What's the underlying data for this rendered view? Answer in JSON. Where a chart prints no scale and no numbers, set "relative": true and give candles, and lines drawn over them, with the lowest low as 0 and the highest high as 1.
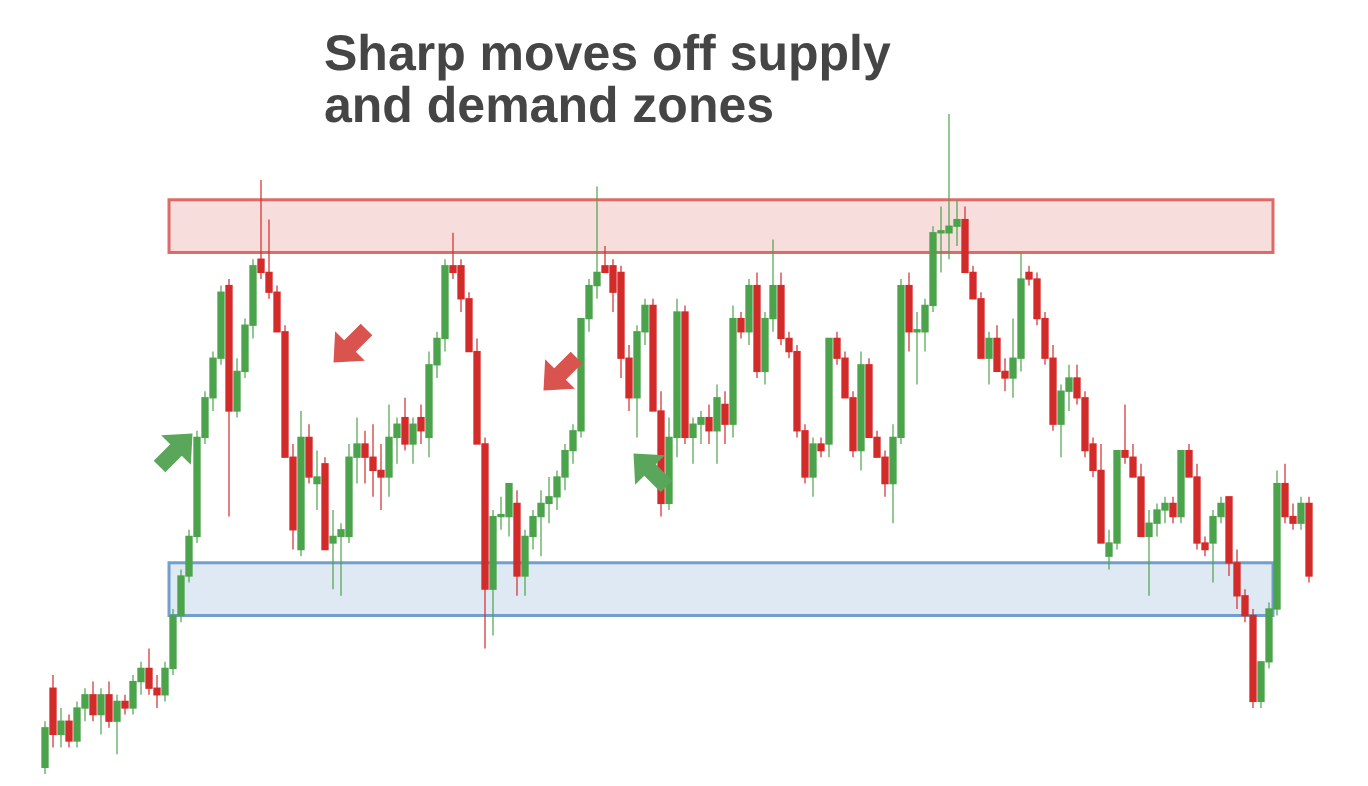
{
  "chart_data": {
    "type": "candlestick",
    "title": "Sharp moves off supply and demand zones",
    "relative": true,
    "colors": [
      "#4ba34b",
      "#d32a2a",
      "#4ba34b",
      "#d32a2a",
      "#4ba34b",
      "#4ba34b",
      "#d32a2a",
      "#4ba34b",
      "#d32a2a",
      "#4ba34b",
      "#d32a2a",
      "#4ba34b",
      "#4ba34b",
      "#d32a2a",
      "#d32a2a",
      "#4ba34b",
      "#4ba34b",
      "#4ba34b",
      "#4ba34b",
      "#4ba34b",
      "#4ba34b",
      "#4ba34b",
      "#4ba34b",
      "#d32a2a",
      "#4ba34b",
      "#4ba34b",
      "#4ba34b",
      "#d32a2a",
      "#d32a2a",
      "#d32a2a",
      "#d32a2a",
      "#d32a2a",
      "#4ba34b",
      "#d32a2a",
      "#4ba34b",
      "#d32a2a",
      "#4ba34b",
      "#4ba34b",
      "#4ba34b",
      "#4ba34b",
      "#d32a2a",
      "#d32a2a",
      "#d32a2a",
      "#4ba34b",
      "#4ba34b",
      "#d32a2a",
      "#4ba34b",
      "#d32a2a",
      "#4ba34b",
      "#4ba34b",
      "#4ba34b",
      "#d32a2a",
      "#d32a2a",
      "#d32a2a",
      "#d32a2a",
      "#d32a2a",
      "#4ba34b",
      "#4ba34b",
      "#4ba34b",
      "#d32a2a",
      "#4ba34b",
      "#4ba34b",
      "#4ba34b",
      "#4ba34b",
      "#4ba34b",
      "#4ba34b",
      "#4ba34b",
      "#4ba34b",
      "#4ba34b",
      "#4ba34b",
      "#d32a2a",
      "#d32a2a",
      "#d32a2a",
      "#d32a2a",
      "#4ba34b",
      "#4ba34b",
      "#d32a2a",
      "#d32a2a",
      "#4ba34b",
      "#4ba34b",
      "#d32a2a",
      "#4ba34b",
      "#4ba34b",
      "#d32a2a",
      "#4ba34b",
      "#d32a2a",
      "#4ba34b",
      "#d32a2a",
      "#4ba34b",
      "#d32a2a",
      "#4ba34b",
      "#4ba34b",
      "#d32a2a",
      "#d32a2a",
      "#d32a2a",
      "#d32a2a",
      "#4ba34b",
      "#d32a2a",
      "#4ba34b",
      "#d32a2a",
      "#d32a2a",
      "#d32a2a",
      "#4ba34b",
      "#d32a2a",
      "#d32a2a",
      "#d32a2a",
      "#4ba34b",
      "#4ba34b",
      "#d32a2a",
      "#4ba34b",
      "#4ba34b",
      "#4ba34b",
      "#4ba34b",
      "#4ba34b",
      "#4ba34b",
      "#d32a2a",
      "#d32a2a",
      "#d32a2a",
      "#4ba34b",
      "#d32a2a",
      "#d32a2a",
      "#4ba34b",
      "#4ba34b",
      "#d32a2a",
      "#d32a2a",
      "#d32a2a",
      "#d32a2a",
      "#4ba34b",
      "#4ba34b",
      "#d32a2a",
      "#d32a2a",
      "#d32a2a",
      "#d32a2a",
      "#4ba34b",
      "#4ba34b",
      "#d32a2a",
      "#d32a2a",
      "#d32a2a",
      "#4ba34b",
      "#4ba34b",
      "#4ba34b",
      "#d32a2a",
      "#4ba34b",
      "#d32a2a",
      "#d32a2a",
      "#d32a2a",
      "#4ba34b",
      "#4ba34b",
      "#d32a2a",
      "#d32a2a",
      "#d32a2a",
      "#d32a2a",
      "#4ba34b",
      "#4ba34b",
      "#4ba34b",
      "#d32a2a",
      "#d32a2a",
      "#4ba34b",
      "#d32a2a"
    ],
    "bands": [
      {
        "axis": "y",
        "from": 0.79,
        "to": 0.87,
        "color": "#d9534f"
      },
      {
        "axis": "y",
        "from": 0.24,
        "to": 0.32,
        "color": "#5b8fc7"
      }
    ],
    "categories": [
      null,
      null,
      null,
      null,
      null,
      null,
      null,
      null,
      null,
      null,
      null,
      null,
      null,
      null,
      null,
      null,
      null,
      null,
      null,
      null,
      null,
      null,
      null,
      null,
      null,
      null,
      null,
      null,
      null,
      null,
      null,
      null,
      null,
      null,
      null,
      null,
      null,
      null,
      null,
      null,
      null,
      null,
      null,
      null,
      null,
      null,
      null,
      null,
      null,
      null,
      null,
      null,
      null,
      null,
      null,
      null,
      null,
      null,
      null,
      null,
      null,
      null,
      null,
      null,
      null,
      null,
      null,
      null,
      null,
      null,
      null,
      null,
      null,
      null,
      null,
      null,
      null,
      null,
      null,
      null,
      null,
      null,
      null,
      null,
      null,
      null,
      null,
      null,
      null,
      null,
      null,
      null,
      null,
      null,
      null,
      null,
      null,
      null,
      null,
      null,
      null,
      null,
      null,
      null,
      null,
      null,
      null,
      null,
      null,
      null,
      null,
      null,
      null,
      null,
      null,
      null,
      null,
      null,
      null,
      null,
      null,
      null,
      null,
      null,
      null,
      null,
      null,
      null,
      null,
      null,
      null,
      null,
      null,
      null,
      null,
      null,
      null,
      null,
      null,
      null,
      null,
      null,
      null,
      null,
      null,
      null,
      null,
      null,
      null,
      null,
      null,
      null,
      null,
      null,
      null,
      null,
      null,
      null,
      null
    ],
    "ohlc": [
      [
        0.01,
        0.08,
        0.0,
        0.07
      ],
      [
        0.13,
        0.15,
        0.04,
        0.06
      ],
      [
        0.06,
        0.1,
        0.04,
        0.08
      ],
      [
        0.08,
        0.09,
        0.04,
        0.05
      ],
      [
        0.05,
        0.11,
        0.04,
        0.1
      ],
      [
        0.1,
        0.13,
        0.08,
        0.12
      ],
      [
        0.12,
        0.14,
        0.08,
        0.09
      ],
      [
        0.09,
        0.13,
        0.06,
        0.12
      ],
      [
        0.12,
        0.14,
        0.07,
        0.08
      ],
      [
        0.08,
        0.12,
        0.03,
        0.11
      ],
      [
        0.11,
        0.12,
        0.09,
        0.1
      ],
      [
        0.1,
        0.15,
        0.09,
        0.14
      ],
      [
        0.14,
        0.17,
        0.12,
        0.16
      ],
      [
        0.16,
        0.19,
        0.12,
        0.13
      ],
      [
        0.13,
        0.15,
        0.1,
        0.12
      ],
      [
        0.12,
        0.17,
        0.11,
        0.16
      ],
      [
        0.16,
        0.25,
        0.15,
        0.24
      ],
      [
        0.24,
        0.31,
        0.23,
        0.3
      ],
      [
        0.3,
        0.37,
        0.29,
        0.36
      ],
      [
        0.36,
        0.52,
        0.35,
        0.51
      ],
      [
        0.51,
        0.58,
        0.5,
        0.57
      ],
      [
        0.57,
        0.64,
        0.55,
        0.63
      ],
      [
        0.63,
        0.74,
        0.62,
        0.73
      ],
      [
        0.74,
        0.75,
        0.39,
        0.55
      ],
      [
        0.55,
        0.63,
        0.54,
        0.61
      ],
      [
        0.61,
        0.69,
        0.6,
        0.68
      ],
      [
        0.68,
        0.78,
        0.66,
        0.77
      ],
      [
        0.78,
        0.9,
        0.75,
        0.76
      ],
      [
        0.76,
        0.84,
        0.72,
        0.73
      ],
      [
        0.73,
        0.74,
        0.67,
        0.67
      ],
      [
        0.67,
        0.68,
        0.48,
        0.48
      ],
      [
        0.48,
        0.5,
        0.34,
        0.37
      ],
      [
        0.34,
        0.55,
        0.33,
        0.51
      ],
      [
        0.51,
        0.53,
        0.44,
        0.45
      ],
      [
        0.44,
        0.49,
        0.4,
        0.45
      ],
      [
        0.47,
        0.48,
        0.34,
        0.34
      ],
      [
        0.35,
        0.4,
        0.28,
        0.36
      ],
      [
        0.36,
        0.38,
        0.27,
        0.37
      ],
      [
        0.36,
        0.5,
        0.35,
        0.48
      ],
      [
        0.48,
        0.54,
        0.44,
        0.5
      ],
      [
        0.5,
        0.52,
        0.44,
        0.48
      ],
      [
        0.48,
        0.53,
        0.42,
        0.46
      ],
      [
        0.46,
        0.5,
        0.4,
        0.45
      ],
      [
        0.45,
        0.56,
        0.42,
        0.51
      ],
      [
        0.51,
        0.54,
        0.47,
        0.53
      ],
      [
        0.54,
        0.57,
        0.49,
        0.5
      ],
      [
        0.5,
        0.54,
        0.47,
        0.53
      ],
      [
        0.54,
        0.56,
        0.5,
        0.52
      ],
      [
        0.51,
        0.64,
        0.48,
        0.62
      ],
      [
        0.62,
        0.67,
        0.6,
        0.66
      ],
      [
        0.66,
        0.78,
        0.64,
        0.77
      ],
      [
        0.77,
        0.82,
        0.75,
        0.76
      ],
      [
        0.77,
        0.78,
        0.7,
        0.72
      ],
      [
        0.72,
        0.73,
        0.64,
        0.64
      ],
      [
        0.64,
        0.66,
        0.5,
        0.5
      ],
      [
        0.5,
        0.51,
        0.19,
        0.28
      ],
      [
        0.28,
        0.4,
        0.21,
        0.39
      ],
      [
        0.39,
        0.42,
        0.37,
        0.39
      ],
      [
        0.39,
        0.44,
        0.36,
        0.44
      ],
      [
        0.41,
        0.43,
        0.27,
        0.3
      ],
      [
        0.3,
        0.37,
        0.27,
        0.36
      ],
      [
        0.36,
        0.4,
        0.34,
        0.39
      ],
      [
        0.39,
        0.43,
        0.33,
        0.41
      ],
      [
        0.41,
        0.45,
        0.38,
        0.42
      ],
      [
        0.42,
        0.46,
        0.4,
        0.45
      ],
      [
        0.45,
        0.5,
        0.43,
        0.49
      ],
      [
        0.49,
        0.53,
        0.47,
        0.52
      ],
      [
        0.52,
        0.69,
        0.51,
        0.69
      ],
      [
        0.69,
        0.75,
        0.67,
        0.74
      ],
      [
        0.74,
        0.89,
        0.72,
        0.76
      ],
      [
        0.77,
        0.8,
        0.76,
        0.76
      ],
      [
        0.77,
        0.78,
        0.7,
        0.73
      ],
      [
        0.76,
        0.77,
        0.6,
        0.63
      ],
      [
        0.63,
        0.65,
        0.55,
        0.57
      ],
      [
        0.57,
        0.68,
        0.51,
        0.67
      ],
      [
        0.67,
        0.72,
        0.65,
        0.71
      ],
      [
        0.71,
        0.72,
        0.55,
        0.55
      ],
      [
        0.55,
        0.58,
        0.39,
        0.41
      ],
      [
        0.41,
        0.54,
        0.4,
        0.51
      ],
      [
        0.51,
        0.72,
        0.48,
        0.7
      ],
      [
        0.7,
        0.71,
        0.5,
        0.51
      ],
      [
        0.51,
        0.54,
        0.47,
        0.53
      ],
      [
        0.53,
        0.55,
        0.5,
        0.54
      ],
      [
        0.54,
        0.56,
        0.5,
        0.52
      ],
      [
        0.52,
        0.59,
        0.47,
        0.57
      ],
      [
        0.56,
        0.58,
        0.5,
        0.53
      ],
      [
        0.53,
        0.71,
        0.51,
        0.69
      ],
      [
        0.69,
        0.7,
        0.66,
        0.67
      ],
      [
        0.67,
        0.75,
        0.65,
        0.74
      ],
      [
        0.74,
        0.76,
        0.6,
        0.61
      ],
      [
        0.61,
        0.7,
        0.59,
        0.69
      ],
      [
        0.69,
        0.81,
        0.67,
        0.74
      ],
      [
        0.74,
        0.76,
        0.65,
        0.66
      ],
      [
        0.66,
        0.67,
        0.63,
        0.64
      ],
      [
        0.64,
        0.65,
        0.51,
        0.52
      ],
      [
        0.52,
        0.53,
        0.44,
        0.45
      ],
      [
        0.45,
        0.51,
        0.42,
        0.5
      ],
      [
        0.5,
        0.51,
        0.48,
        0.49
      ],
      [
        0.5,
        0.66,
        0.48,
        0.66
      ],
      [
        0.66,
        0.67,
        0.62,
        0.63
      ],
      [
        0.63,
        0.64,
        0.57,
        0.57
      ],
      [
        0.57,
        0.58,
        0.48,
        0.49
      ],
      [
        0.49,
        0.64,
        0.46,
        0.62
      ],
      [
        0.62,
        0.63,
        0.51,
        0.51
      ],
      [
        0.51,
        0.52,
        0.48,
        0.48
      ],
      [
        0.48,
        0.49,
        0.42,
        0.44
      ],
      [
        0.44,
        0.53,
        0.38,
        0.51
      ],
      [
        0.51,
        0.75,
        0.5,
        0.74
      ],
      [
        0.74,
        0.76,
        0.64,
        0.67
      ],
      [
        0.67,
        0.7,
        0.59,
        0.67
      ],
      [
        0.67,
        0.72,
        0.64,
        0.71
      ],
      [
        0.71,
        0.83,
        0.7,
        0.82
      ],
      [
        0.82,
        0.86,
        0.76,
        0.82
      ],
      [
        0.82,
        1.0,
        0.78,
        0.83
      ],
      [
        0.83,
        0.87,
        0.8,
        0.84
      ],
      [
        0.84,
        0.86,
        0.76,
        0.76
      ],
      [
        0.76,
        0.77,
        0.72,
        0.72
      ],
      [
        0.72,
        0.73,
        0.63,
        0.63
      ],
      [
        0.63,
        0.67,
        0.59,
        0.66
      ],
      [
        0.66,
        0.68,
        0.61,
        0.61
      ],
      [
        0.61,
        0.63,
        0.58,
        0.6
      ],
      [
        0.6,
        0.69,
        0.57,
        0.63
      ],
      [
        0.63,
        0.79,
        0.61,
        0.75
      ],
      [
        0.76,
        0.77,
        0.74,
        0.75
      ],
      [
        0.75,
        0.76,
        0.68,
        0.69
      ],
      [
        0.69,
        0.7,
        0.62,
        0.63
      ],
      [
        0.63,
        0.65,
        0.52,
        0.53
      ],
      [
        0.53,
        0.59,
        0.48,
        0.58
      ],
      [
        0.58,
        0.62,
        0.55,
        0.6
      ],
      [
        0.6,
        0.62,
        0.56,
        0.57
      ],
      [
        0.57,
        0.58,
        0.48,
        0.49
      ],
      [
        0.5,
        0.51,
        0.45,
        0.46
      ],
      [
        0.46,
        0.5,
        0.35,
        0.35
      ],
      [
        0.33,
        0.37,
        0.31,
        0.35
      ],
      [
        0.35,
        0.49,
        0.34,
        0.49
      ],
      [
        0.49,
        0.56,
        0.47,
        0.48
      ],
      [
        0.48,
        0.5,
        0.45,
        0.45
      ],
      [
        0.45,
        0.47,
        0.36,
        0.36
      ],
      [
        0.36,
        0.4,
        0.27,
        0.38
      ],
      [
        0.38,
        0.41,
        0.36,
        0.4
      ],
      [
        0.4,
        0.42,
        0.38,
        0.41
      ],
      [
        0.41,
        0.42,
        0.38,
        0.39
      ],
      [
        0.39,
        0.49,
        0.38,
        0.49
      ],
      [
        0.49,
        0.5,
        0.45,
        0.45
      ],
      [
        0.45,
        0.47,
        0.34,
        0.35
      ],
      [
        0.35,
        0.36,
        0.33,
        0.34
      ],
      [
        0.35,
        0.4,
        0.29,
        0.39
      ],
      [
        0.39,
        0.42,
        0.38,
        0.41
      ],
      [
        0.42,
        0.42,
        0.3,
        0.32
      ],
      [
        0.32,
        0.34,
        0.25,
        0.27
      ],
      [
        0.27,
        0.28,
        0.23,
        0.24
      ],
      [
        0.24,
        0.25,
        0.1,
        0.11
      ],
      [
        0.11,
        0.17,
        0.1,
        0.17
      ],
      [
        0.17,
        0.26,
        0.16,
        0.25
      ],
      [
        0.25,
        0.46,
        0.24,
        0.44
      ],
      [
        0.44,
        0.47,
        0.38,
        0.39
      ],
      [
        0.39,
        0.41,
        0.37,
        0.38
      ],
      [
        0.38,
        0.42,
        0.37,
        0.41
      ],
      [
        0.41,
        0.42,
        0.29,
        0.3
      ]
    ]
  }
}
